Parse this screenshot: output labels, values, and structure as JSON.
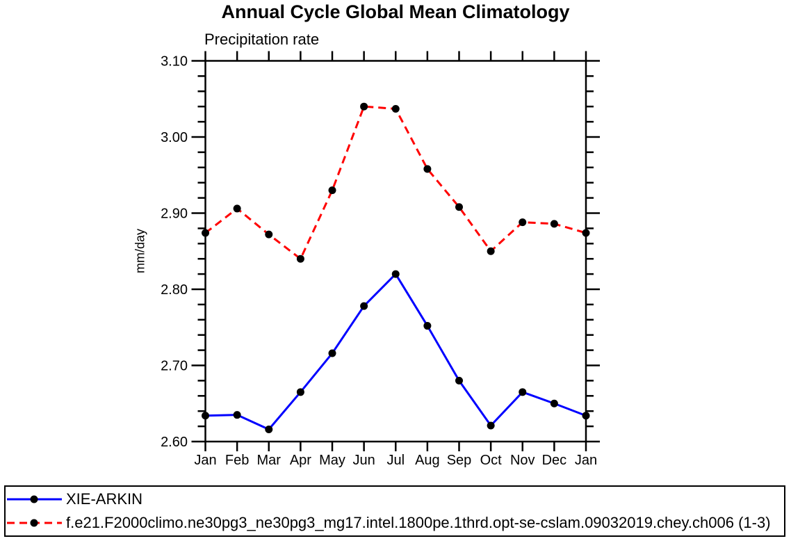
{
  "title": "Annual Cycle Global Mean Climatology",
  "subtitle": "Precipitation rate",
  "chart_data": {
    "type": "line",
    "x": [
      "Jan",
      "Feb",
      "Mar",
      "Apr",
      "May",
      "Jun",
      "Jul",
      "Aug",
      "Sep",
      "Oct",
      "Nov",
      "Dec",
      "Jan"
    ],
    "xlabel": "",
    "ylabel": "mm/day",
    "ylim": [
      2.6,
      3.1
    ],
    "ytick_major": 0.1,
    "ytick_minor": 0.02,
    "yticks": [
      "2.60",
      "2.70",
      "2.80",
      "2.90",
      "3.00",
      "3.10"
    ],
    "grid": false,
    "legend_position": "bottom-box",
    "marker": "filled-black-circle",
    "series": [
      {
        "name": "XIE-ARKIN",
        "color": "#0000ff",
        "line_style": "solid",
        "marker_color": "#000000",
        "values": [
          2.634,
          2.635,
          2.616,
          2.665,
          2.716,
          2.778,
          2.82,
          2.752,
          2.68,
          2.621,
          2.665,
          2.65,
          2.634
        ]
      },
      {
        "name": "f.e21.F2000climo.ne30pg3_ne30pg3_mg17.intel.1800pe.1thrd.opt-se-cslam.09032019.chey.ch006 (1-3)",
        "color": "#ff0000",
        "line_style": "dashed",
        "marker_color": "#000000",
        "values": [
          2.874,
          2.906,
          2.872,
          2.84,
          2.93,
          3.04,
          3.037,
          2.958,
          2.908,
          2.85,
          2.888,
          2.886,
          2.874
        ]
      }
    ]
  }
}
